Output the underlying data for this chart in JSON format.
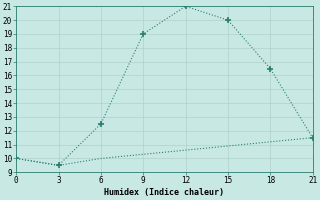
{
  "line1_x": [
    0,
    3,
    6,
    9,
    12,
    15,
    18,
    21
  ],
  "line1_y": [
    10,
    9.5,
    12.5,
    19,
    21,
    20,
    16.5,
    11.5
  ],
  "line2_x": [
    0,
    3,
    6,
    9,
    12,
    15,
    18,
    21
  ],
  "line2_y": [
    10,
    9.5,
    10.0,
    10.3,
    10.6,
    10.9,
    11.2,
    11.5
  ],
  "line_color": "#2a7d6e",
  "bg_color": "#c8e8e4",
  "xlabel": "Humidex (Indice chaleur)",
  "xlim": [
    0,
    21
  ],
  "ylim": [
    9,
    21
  ],
  "xticks": [
    0,
    3,
    6,
    9,
    12,
    15,
    18,
    21
  ],
  "yticks": [
    9,
    10,
    11,
    12,
    13,
    14,
    15,
    16,
    17,
    18,
    19,
    20,
    21
  ],
  "grid_color": "#b0d0cc",
  "marker": "+",
  "marker_size": 5,
  "marker_linewidth": 1.2
}
